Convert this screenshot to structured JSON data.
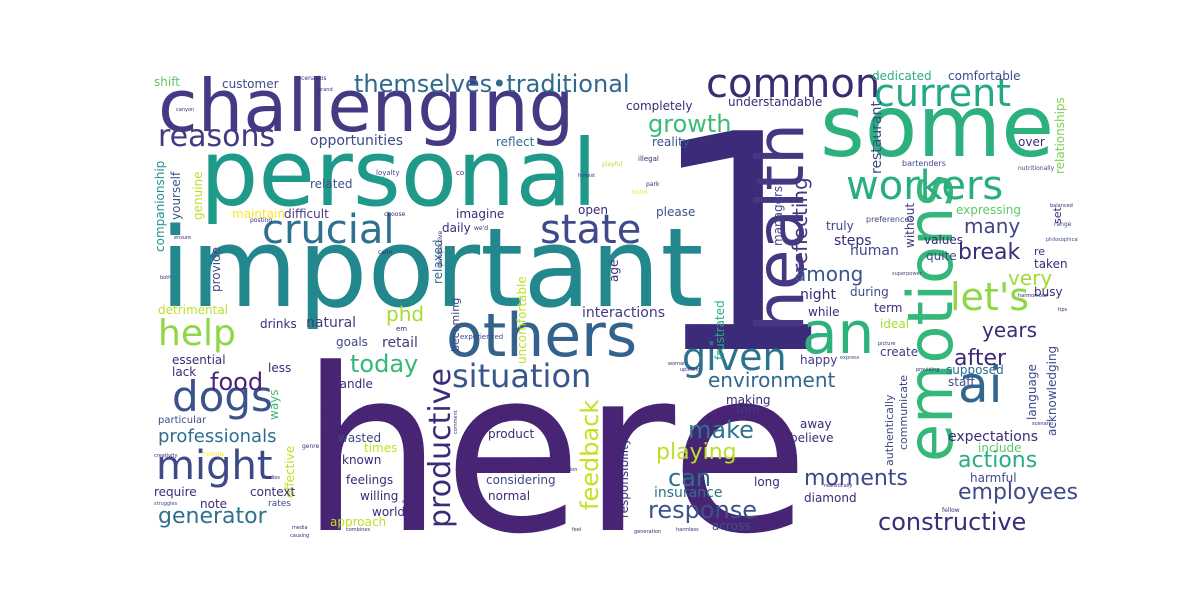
{
  "words": {
    "here": "here",
    "important": "important",
    "personal": "personal",
    "one": "1",
    "some": "some",
    "challenging": "challenging",
    "emotions": "emotions",
    "health": "health",
    "others": "others",
    "an": "an",
    "common": "common",
    "workers": "workers",
    "current": "current",
    "given": "given",
    "crucial": "crucial",
    "state": "state",
    "ai": "ai",
    "lets": "let's",
    "might": "might",
    "dogs": "dogs",
    "help": "help",
    "situation": "situation",
    "reasons": "reasons",
    "themselves": "themselves",
    "traditional": "traditional",
    "growth": "growth",
    "constructive": "constructive",
    "productive": "productive",
    "employees": "employees",
    "generator": "generator",
    "feedback": "feedback",
    "response": "response",
    "environment": "environment",
    "today": "today",
    "food": "food",
    "actions": "actions",
    "make": "make",
    "moments": "moments",
    "playing": "playing",
    "can": "can",
    "professionals": "professionals",
    "break": "break",
    "many": "many",
    "very": "very",
    "reflecting": "reflecting",
    "among": "among",
    "after": "after",
    "years": "years",
    "phd": "phd",
    "interactions": "interactions",
    "opportunities": "opportunities",
    "natural": "natural",
    "retail": "retail",
    "expectations": "expectations",
    "insurance": "insurance",
    "steps": "steps",
    "human": "human",
    "night": "night",
    "restaurant": "restaurant",
    "relationships": "relationships",
    "dedicated": "dedicated",
    "comfortable": "comfortable",
    "understandable": "understandable",
    "completely": "completely",
    "reality": "reality",
    "reflect": "reflect",
    "customer": "customer",
    "shift": "shift",
    "related": "related",
    "maintain": "maintain",
    "difficult": "difficult",
    "genuine": "genuine",
    "yourself": "yourself",
    "companionship": "companionship",
    "provide": "provide",
    "imagine": "imagine",
    "daily": "daily",
    "open": "open",
    "please": "please",
    "truly": "truly",
    "managers": "managers",
    "without": "without",
    "expressing": "expressing",
    "values": "values",
    "quite": "quite",
    "taken": "taken",
    "busy": "busy",
    "term": "term",
    "during": "during",
    "ideal": "ideal",
    "create": "create",
    "staff": "staff",
    "supposed": "supposed",
    "language": "language",
    "acknowledging": "acknowledging",
    "while": "while",
    "happy": "happy",
    "tom": "tom",
    "away": "away",
    "believe": "believe",
    "include": "include",
    "harmful": "harmful",
    "communicate": "communicate",
    "authentically": "authentically",
    "frustrated": "frustrated",
    "resident": "resident",
    "age": "age",
    "long": "long",
    "diamond": "diamond",
    "across": "across",
    "normal": "normal",
    "considering": "considering",
    "product": "product",
    "responsibility": "responsibility",
    "making": "making",
    "relaxed": "relaxed",
    "becoming": "becoming",
    "uncomfortable": "uncomfortable",
    "handle": "handle",
    "less": "less",
    "goals": "goals",
    "essential": "essential",
    "lack": "lack",
    "detrimental": "detrimental",
    "drinks": "drinks",
    "ways": "ways",
    "wasted": "wasted",
    "known": "known",
    "times": "times",
    "feelings": "feelings",
    "willing": "willing",
    "world": "world",
    "approach": "approach",
    "effective": "effective",
    "context": "context",
    "require": "require",
    "note": "note",
    "particular": "particular",
    "rates": "rates",
    "over": "over",
    "set": "set",
    "re": "re",
    "s": "s",
    "em": "em",
    "bartenders": "bartenders",
    "nutritionally": "nutritionally",
    "loyalty": "loyalty",
    "co": "co",
    "honest": "honest",
    "illegal": "illegal",
    "playful": "playful",
    "park": "park",
    "bond": "bond",
    "choose": "choose",
    "posting": "posting",
    "ensure": "ensure",
    "both": "both",
    "preferences": "preferences",
    "balanced": "balanced",
    "range": "range",
    "philosophical": "philosophical",
    "superpower": "superpower",
    "harmonious": "harmonious",
    "tips": "tips",
    "calm": "calm",
    "perspective": "perspective",
    "experienced": "experienced",
    "woman": "woman",
    "uplifting": "uplifting",
    "express": "express",
    "picture": "picture",
    "providing": "providing",
    "scenario": "scenario",
    "realistically": "realistically",
    "fellow": "fellow",
    "harmless": "harmless",
    "generation": "generation",
    "feel": "feel",
    "don": "don",
    "comment": "comment",
    "ability": "ability",
    "creativity": "creativity",
    "friendly": "friendly",
    "struggles": "struggles",
    "combines": "combines",
    "media": "media",
    "causing": "causing",
    "scenarios": "scenarios",
    "grand": "grand",
    "canyon": "canyon",
    "genre": "genre",
    "studies": "studies",
    "we_d": "we'd",
    "aside": "aside"
  },
  "colors": {
    "dark_purple": "#482475",
    "purple": "#443983",
    "indigo": "#3f4788",
    "blue": "#33638d",
    "steel": "#2d708e",
    "teal": "#21908d",
    "sea": "#27ad81",
    "green": "#3bbb75",
    "lime": "#7ad151",
    "yellow": "#bddf26",
    "gold": "#fde725"
  }
}
